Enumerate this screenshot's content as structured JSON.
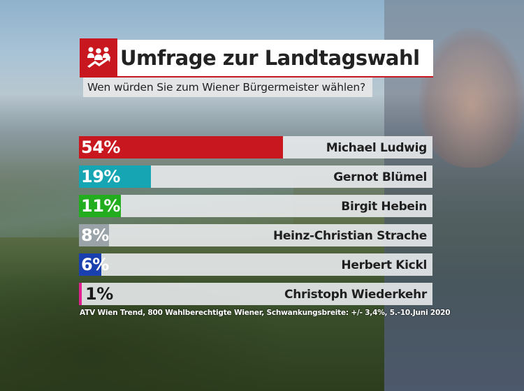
{
  "header": {
    "title": "Umfrage zur Landtagswahl",
    "subtitle": "Wen würden Sie zum Wiener Bürgermeister wählen?",
    "icon": "people-poll-icon",
    "accent_color": "#c8171e"
  },
  "rows": [
    {
      "pct_label": "54%",
      "name": "Michael Ludwig",
      "value": 54,
      "color": "#c8171e",
      "text_dark": false
    },
    {
      "pct_label": "19%",
      "name": "Gernot Blümel",
      "value": 19,
      "color": "#16a5b3",
      "text_dark": false
    },
    {
      "pct_label": "11%",
      "name": "Birgit Hebein",
      "value": 11,
      "color": "#22ad1e",
      "text_dark": false
    },
    {
      "pct_label": "8%",
      "name": "Heinz-Christian Strache",
      "value": 8,
      "color": "#9aa3a8",
      "text_dark": false
    },
    {
      "pct_label": "6%",
      "name": "Herbert Kickl",
      "value": 6,
      "color": "#1a3fae",
      "text_dark": false
    },
    {
      "pct_label": "1%",
      "name": "Christoph Wiederkehr",
      "value": 1,
      "color": "#e0208c",
      "text_dark": true
    }
  ],
  "footnote": "ATV Wien Trend, 800 Wahlberechtigte Wiener, Schwankungsbreite: +/- 3,4%, 5.-10.Juni 2020",
  "chart_data": {
    "type": "bar",
    "orientation": "horizontal",
    "title": "Umfrage zur Landtagswahl",
    "subtitle": "Wen würden Sie zum Wiener Bürgermeister wählen?",
    "categories": [
      "Michael Ludwig",
      "Gernot Blümel",
      "Birgit Hebein",
      "Heinz-Christian Strache",
      "Herbert Kickl",
      "Christoph Wiederkehr"
    ],
    "values": [
      54,
      19,
      11,
      8,
      6,
      1
    ],
    "colors": [
      "#c8171e",
      "#16a5b3",
      "#22ad1e",
      "#9aa3a8",
      "#1a3fae",
      "#e0208c"
    ],
    "unit": "%",
    "xlabel": "",
    "ylabel": "",
    "xlim": [
      0,
      100
    ],
    "grid": false,
    "legend": "none",
    "source": "ATV Wien Trend, 800 Wahlberechtigte Wiener, Schwankungsbreite: +/- 3,4%, 5.-10.Juni 2020"
  }
}
